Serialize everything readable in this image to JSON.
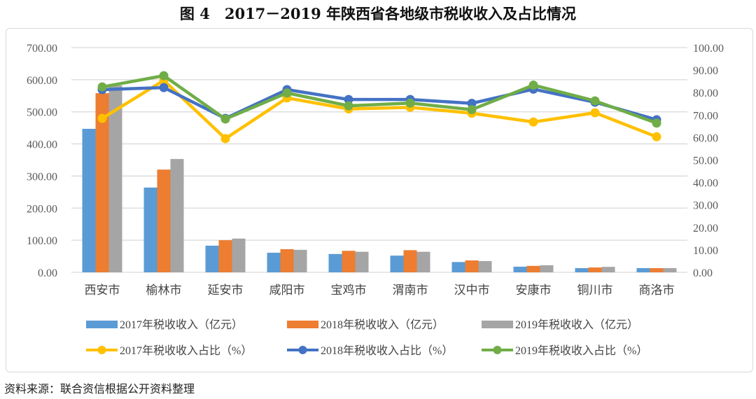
{
  "title": "图 4　2017－2019 年陕西省各地级市税收收入及占比情况",
  "source": "资料来源：联合资信根据公开资料整理",
  "chart_data": {
    "type": "bar+line",
    "categories": [
      "西安市",
      "榆林市",
      "延安市",
      "咸阳市",
      "宝鸡市",
      "渭南市",
      "汉中市",
      "安康市",
      "铜川市",
      "商洛市"
    ],
    "left_axis": {
      "ylim": [
        0,
        700
      ],
      "ticks": [
        "0.00",
        "100.00",
        "200.00",
        "300.00",
        "400.00",
        "500.00",
        "600.00",
        "700.00"
      ]
    },
    "right_axis": {
      "ylim": [
        0,
        100
      ],
      "ticks": [
        "0.00",
        "10.00",
        "20.00",
        "30.00",
        "40.00",
        "50.00",
        "60.00",
        "70.00",
        "80.00",
        "90.00",
        "100.00"
      ]
    },
    "grid": true,
    "legend_position": "bottom",
    "bar_series": [
      {
        "name": "2017年税收收入（亿元）",
        "color": "#5b9bd5",
        "values": [
          447,
          264,
          83,
          61,
          57,
          52,
          32,
          17.5,
          13,
          13
        ]
      },
      {
        "name": "2018年税收收入（亿元）",
        "color": "#ed7d31",
        "values": [
          558,
          320,
          100,
          72,
          67,
          69,
          37,
          20,
          15,
          13
        ]
      },
      {
        "name": "2019年税收收入（亿元）",
        "color": "#a5a5a5",
        "values": [
          582,
          353,
          105,
          70,
          64,
          64,
          35,
          22,
          17,
          13
        ]
      }
    ],
    "line_series": [
      {
        "name": "2017年税收收入占比（%）",
        "color": "#ffc000",
        "values": [
          68.5,
          85.4,
          59.5,
          77.6,
          72.7,
          73.4,
          70.8,
          66.9,
          71.0,
          60.3
        ]
      },
      {
        "name": "2018年税收收入占比（%）",
        "color": "#4472c4",
        "values": [
          81.3,
          82.2,
          68.5,
          81.3,
          76.9,
          76.9,
          75.2,
          81.5,
          75.7,
          67.9
        ]
      },
      {
        "name": "2019年税收收入占比（%）",
        "color": "#70ad47",
        "values": [
          82.5,
          87.5,
          68.2,
          79.8,
          74.1,
          75.3,
          72.4,
          83.3,
          76.3,
          66.4
        ]
      }
    ]
  }
}
